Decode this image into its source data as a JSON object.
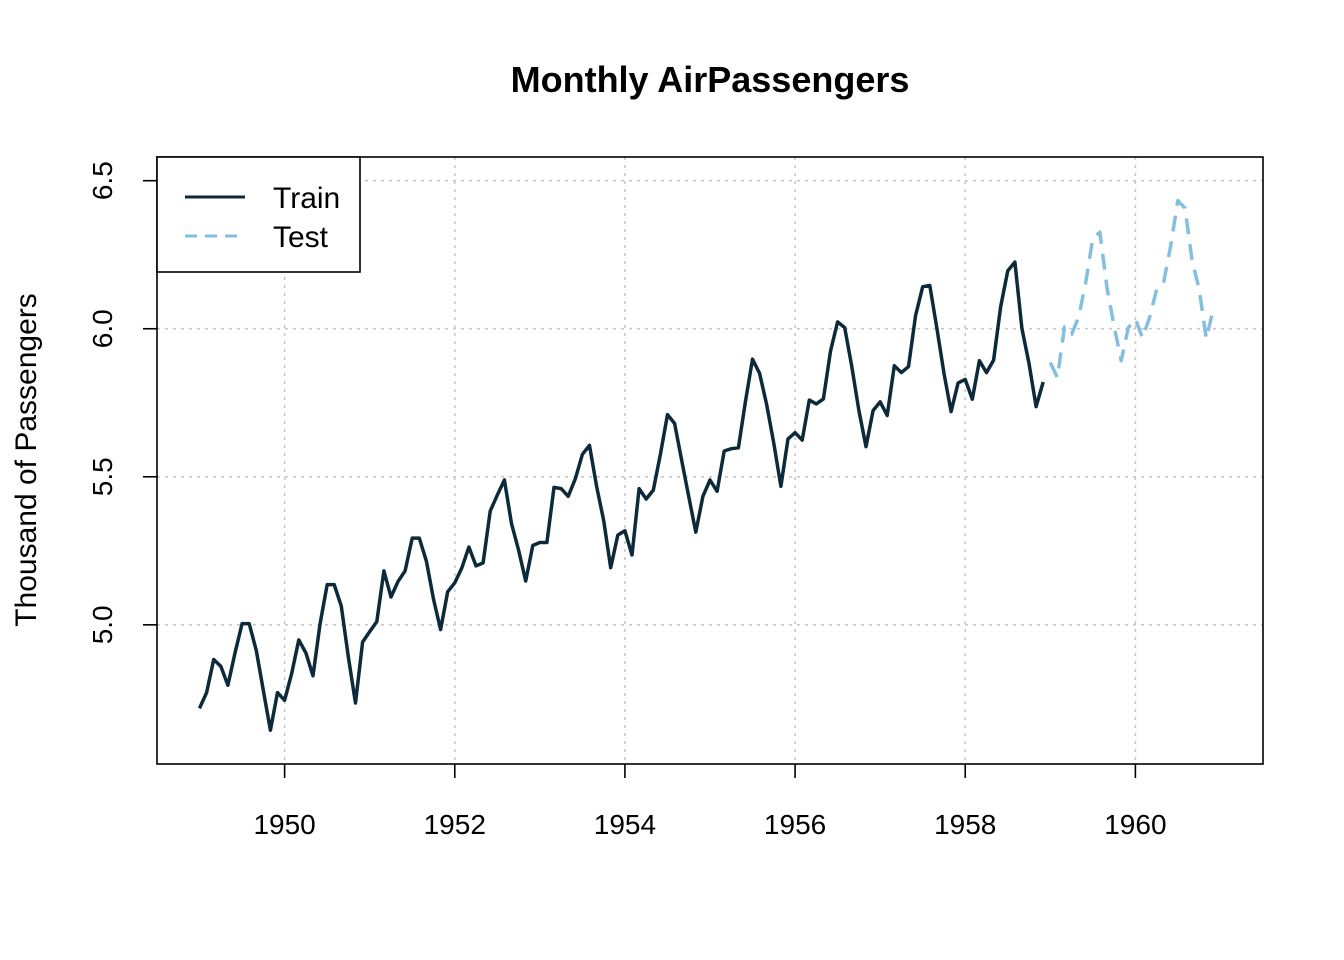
{
  "chart_data": {
    "type": "line",
    "title": "Monthly AirPassengers",
    "xlabel": "",
    "ylabel": "Thousand of Passengers",
    "xlim": [
      1948.5,
      1961.5
    ],
    "ylim": [
      4.53,
      6.58
    ],
    "x_ticks": [
      1950,
      1952,
      1954,
      1956,
      1958,
      1960
    ],
    "y_ticks": [
      5.0,
      5.5,
      6.0,
      6.5
    ],
    "y_tick_labels": [
      "5.0",
      "5.5",
      "6.0",
      "6.5"
    ],
    "grid": true,
    "legend": {
      "position": "top-left",
      "entries": [
        "Train",
        "Test"
      ]
    },
    "x_start": 1949.0,
    "x_step": 0.0833333,
    "series": [
      {
        "name": "Train",
        "color": "#0d2a3a",
        "dash": "solid",
        "start_index": 0,
        "values": [
          4.718,
          4.771,
          4.883,
          4.86,
          4.796,
          4.905,
          5.004,
          5.004,
          4.913,
          4.779,
          4.644,
          4.771,
          4.745,
          4.836,
          4.949,
          4.905,
          4.828,
          5.004,
          5.136,
          5.136,
          5.063,
          4.89,
          4.736,
          4.942,
          4.977,
          5.011,
          5.182,
          5.094,
          5.147,
          5.182,
          5.293,
          5.293,
          5.215,
          5.087,
          4.984,
          5.112,
          5.142,
          5.193,
          5.263,
          5.199,
          5.209,
          5.384,
          5.438,
          5.489,
          5.342,
          5.252,
          5.148,
          5.268,
          5.278,
          5.278,
          5.464,
          5.46,
          5.434,
          5.493,
          5.576,
          5.606,
          5.468,
          5.352,
          5.193,
          5.303,
          5.318,
          5.236,
          5.46,
          5.425,
          5.455,
          5.576,
          5.71,
          5.68,
          5.557,
          5.434,
          5.313,
          5.434,
          5.489,
          5.451,
          5.587,
          5.595,
          5.598,
          5.753,
          5.897,
          5.849,
          5.743,
          5.613,
          5.468,
          5.628,
          5.649,
          5.624,
          5.759,
          5.746,
          5.763,
          5.924,
          6.023,
          6.004,
          5.872,
          5.724,
          5.602,
          5.724,
          5.753,
          5.707,
          5.875,
          5.852,
          5.872,
          6.045,
          6.142,
          6.146,
          6.001,
          5.849,
          5.72,
          5.817,
          5.829,
          5.762,
          5.892,
          5.852,
          5.894,
          6.075,
          6.196,
          6.225,
          6.001,
          5.883,
          5.737,
          5.82
        ]
      },
      {
        "name": "Test",
        "color": "#85bfdf",
        "dash": "dashed",
        "start_index": 120,
        "values": [
          5.886,
          5.835,
          6.006,
          5.981,
          6.04,
          6.157,
          6.306,
          6.326,
          6.138,
          6.009,
          5.892,
          6.004,
          6.033,
          5.969,
          6.038,
          6.133,
          6.157,
          6.282,
          6.433,
          6.407,
          6.23,
          6.133,
          5.966,
          6.068
        ]
      }
    ]
  }
}
